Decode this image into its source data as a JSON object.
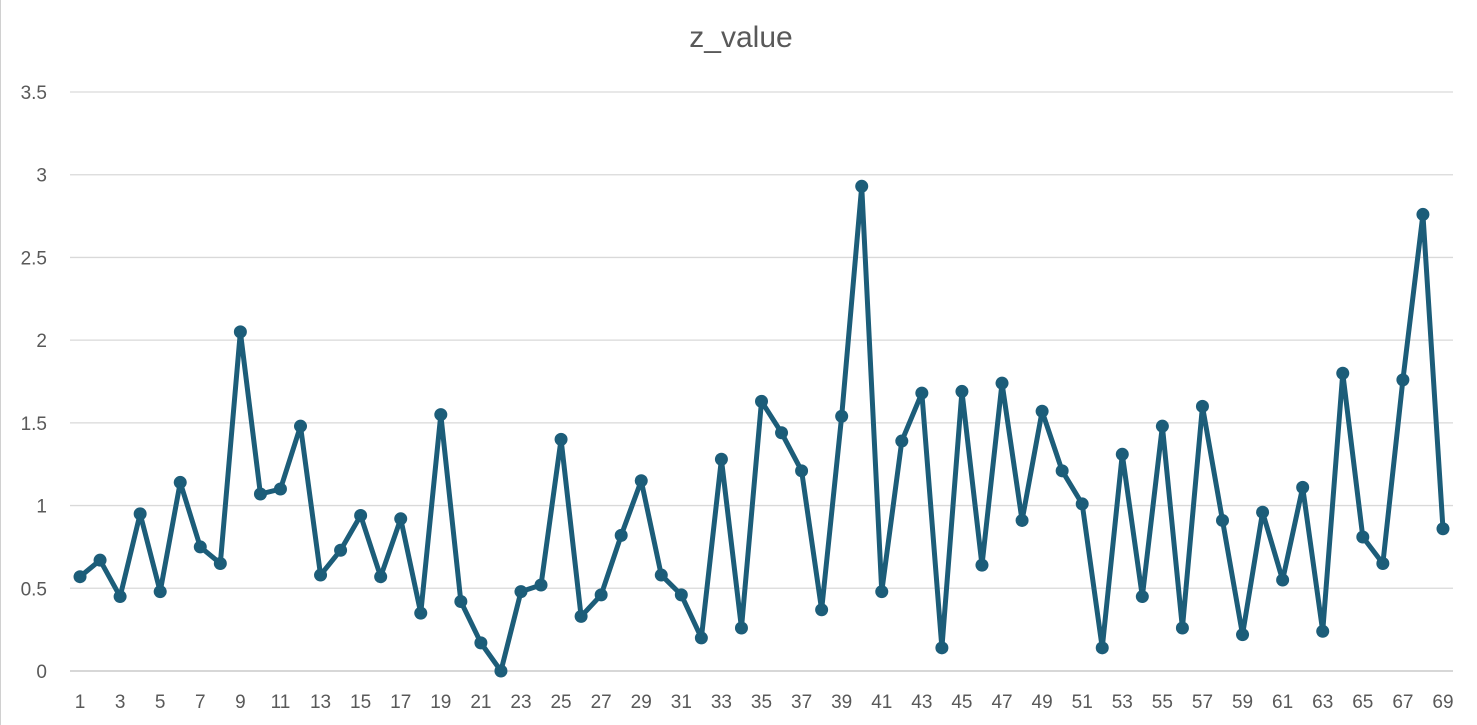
{
  "chart_data": {
    "type": "line",
    "title": "z_value",
    "xlabel": "",
    "ylabel": "",
    "ylim": [
      0,
      3.5
    ],
    "yticks": [
      "0",
      "0.5",
      "1",
      "1.5",
      "2",
      "2.5",
      "3",
      "3.5"
    ],
    "ytick_values": [
      0,
      0.5,
      1,
      1.5,
      2,
      2.5,
      3,
      3.5
    ],
    "x": [
      1,
      2,
      3,
      4,
      5,
      6,
      7,
      8,
      9,
      10,
      11,
      12,
      13,
      14,
      15,
      16,
      17,
      18,
      19,
      20,
      21,
      22,
      23,
      24,
      25,
      26,
      27,
      28,
      29,
      30,
      31,
      32,
      33,
      34,
      35,
      36,
      37,
      38,
      39,
      40,
      41,
      42,
      43,
      44,
      45,
      46,
      47,
      48,
      49,
      50,
      51,
      52,
      53,
      54,
      55,
      56,
      57,
      58,
      59,
      60,
      61,
      62,
      63,
      64,
      65,
      66,
      67,
      68,
      69
    ],
    "xtick_labels": [
      "1",
      "3",
      "5",
      "7",
      "9",
      "11",
      "13",
      "15",
      "17",
      "19",
      "21",
      "23",
      "25",
      "27",
      "29",
      "31",
      "33",
      "35",
      "37",
      "39",
      "41",
      "43",
      "45",
      "47",
      "49",
      "51",
      "53",
      "55",
      "57",
      "59",
      "61",
      "63",
      "65",
      "67",
      "69"
    ],
    "series": [
      {
        "values": [
          0.57,
          0.67,
          0.45,
          0.95,
          0.48,
          1.14,
          0.75,
          0.65,
          2.05,
          1.07,
          1.1,
          1.48,
          0.58,
          0.73,
          0.94,
          0.57,
          0.92,
          0.35,
          1.55,
          0.42,
          0.17,
          0.0,
          0.48,
          0.52,
          1.4,
          0.33,
          0.46,
          0.82,
          1.15,
          0.58,
          0.46,
          0.2,
          1.28,
          0.26,
          1.63,
          1.44,
          1.21,
          0.37,
          1.54,
          2.93,
          0.48,
          1.39,
          1.68,
          0.14,
          1.69,
          0.64,
          1.74,
          0.91,
          1.57,
          1.21,
          1.01,
          0.14,
          1.31,
          0.45,
          1.48,
          0.26,
          1.6,
          0.91,
          0.22,
          0.96,
          0.55,
          1.11,
          0.24,
          1.8,
          0.81,
          0.65,
          1.76,
          2.76,
          0.86
        ],
        "color": "#1c5d79"
      }
    ],
    "grid": true,
    "legend": "none",
    "markers": "circle"
  }
}
